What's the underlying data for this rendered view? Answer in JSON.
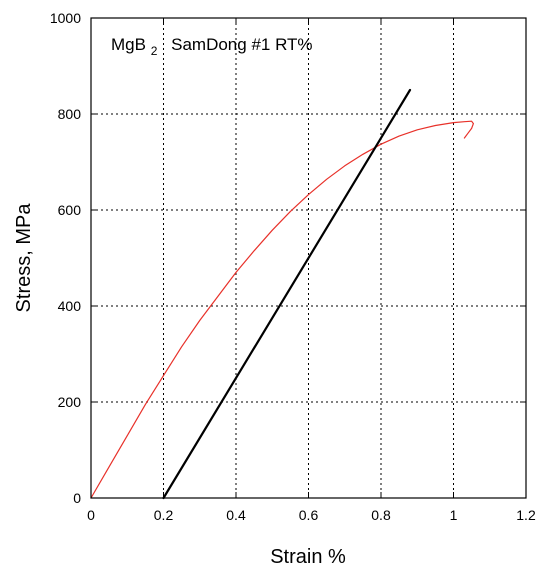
{
  "chart_data": {
    "type": "line",
    "title": "",
    "xlabel": "Strain %",
    "ylabel": "Stress, MPa",
    "xlim": [
      0,
      1.2
    ],
    "ylim": [
      0,
      1000
    ],
    "xticks": [
      0,
      0.2,
      0.4,
      0.6,
      0.8,
      1,
      1.2
    ],
    "xtick_labels": [
      "0",
      "0.2",
      "0.4",
      "0.6",
      "0.8",
      "1",
      "1.2"
    ],
    "yticks": [
      0,
      200,
      400,
      600,
      800,
      1000
    ],
    "ytick_labels": [
      "0",
      "200",
      "400",
      "600",
      "800",
      "1000"
    ],
    "grid": true,
    "grid_style": "dotted",
    "annotation": {
      "material_base": "MgB",
      "material_sub": "2",
      "label": "SamDong #1 RT%"
    },
    "series": [
      {
        "color": "#e8312a",
        "x": [
          0,
          0.05,
          0.1,
          0.15,
          0.2,
          0.25,
          0.3,
          0.35,
          0.4,
          0.45,
          0.5,
          0.55,
          0.6,
          0.65,
          0.7,
          0.75,
          0.8,
          0.85,
          0.9,
          0.95,
          1.0,
          1.03,
          1.05,
          1.055,
          1.05,
          1.04,
          1.03
        ],
        "y": [
          0,
          65,
          130,
          195,
          255,
          315,
          370,
          420,
          470,
          515,
          558,
          597,
          632,
          664,
          692,
          716,
          737,
          754,
          767,
          776,
          782,
          784,
          785,
          780,
          770,
          760,
          750
        ]
      },
      {
        "color": "#000000",
        "x": [
          0.2,
          0.88
        ],
        "y": [
          0,
          850
        ]
      }
    ]
  }
}
